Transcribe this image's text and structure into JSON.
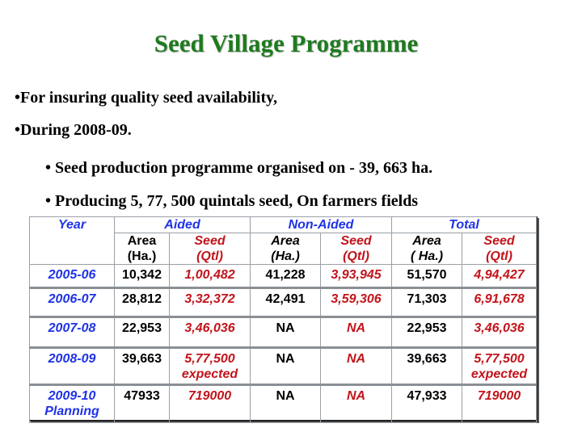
{
  "title": "Seed Village Programme",
  "bullets": {
    "b1": "•For insuring quality seed availability,",
    "b2": "•During 2008-09.",
    "b3": "• Seed production programme organised on  - 39, 663 ha.",
    "b4": "• Producing  5, 77, 500 quintals seed, On farmers fields"
  },
  "table": {
    "groups": {
      "aided": "Aided",
      "non_aided": "Non-Aided",
      "total": "Total"
    },
    "year_header": "Year",
    "sub": {
      "aided_area": [
        "Area",
        "(Ha.)"
      ],
      "aided_seed": [
        "Seed",
        "(Qtl)"
      ],
      "non_area": [
        "Area",
        "(Ha.)"
      ],
      "non_seed": [
        "Seed",
        "(Qtl)"
      ],
      "tot_area": [
        "Area",
        "( Ha.)"
      ],
      "tot_seed": [
        "Seed",
        "(Qtl)"
      ]
    },
    "rows": [
      {
        "year": [
          "2005-06"
        ],
        "a_area": [
          "10,342"
        ],
        "a_seed": [
          "1,00,482"
        ],
        "n_area": [
          "41,228"
        ],
        "n_seed": [
          "3,93,945"
        ],
        "t_area": [
          "51,570"
        ],
        "t_seed": [
          "4,94,427"
        ]
      },
      {
        "year": [
          "2006-07"
        ],
        "a_area": [
          "28,812"
        ],
        "a_seed": [
          "3,32,372"
        ],
        "n_area": [
          "42,491"
        ],
        "n_seed": [
          "3,59,306"
        ],
        "t_area": [
          "71,303"
        ],
        "t_seed": [
          "6,91,678"
        ]
      },
      {
        "year": [
          "2007-08"
        ],
        "a_area": [
          "22,953"
        ],
        "a_seed": [
          "3,46,036"
        ],
        "n_area": [
          "NA"
        ],
        "n_seed": [
          "NA"
        ],
        "t_area": [
          "22,953"
        ],
        "t_seed": [
          "3,46,036"
        ]
      },
      {
        "year": [
          "2008-09"
        ],
        "a_area": [
          "39,663"
        ],
        "a_seed": [
          "5,77,500",
          "expected"
        ],
        "n_area": [
          "NA"
        ],
        "n_seed": [
          "NA"
        ],
        "t_area": [
          "39,663"
        ],
        "t_seed": [
          "5,77,500",
          "expected"
        ]
      },
      {
        "year": [
          "2009-10",
          "Planning"
        ],
        "a_area": [
          "47933"
        ],
        "a_seed": [
          "719000"
        ],
        "n_area": [
          "NA"
        ],
        "n_seed": [
          "NA"
        ],
        "t_area": [
          "47,933"
        ],
        "t_seed": [
          "719000"
        ]
      }
    ]
  },
  "colors": {
    "title": "#1f7a1f",
    "header_blue": "#1f33e6",
    "value_red": "#c2141b"
  }
}
